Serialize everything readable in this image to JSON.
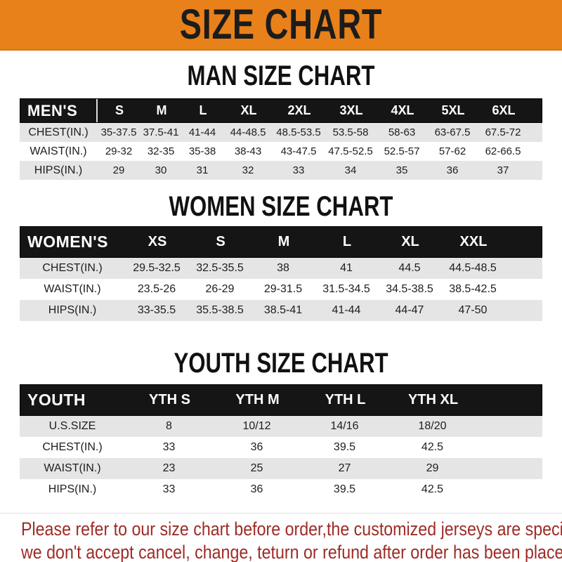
{
  "banner": {
    "title": "SIZE CHART",
    "bg_color": "#E8811A",
    "text_color": "#1c1c1c"
  },
  "tables": [
    {
      "id": "men",
      "title": "MAN SIZE CHART",
      "header_label": "MEN'S",
      "columns": [
        "S",
        "M",
        "L",
        "XL",
        "2XL",
        "3XL",
        "4XL",
        "5XL",
        "6XL"
      ],
      "rows": [
        {
          "label": "CHEST(IN.)",
          "values": [
            "35-37.5",
            "37.5-41",
            "41-44",
            "44-48.5",
            "48.5-53.5",
            "53.5-58",
            "58-63",
            "63-67.5",
            "67.5-72"
          ]
        },
        {
          "label": "WAIST(IN.)",
          "values": [
            "29-32",
            "32-35",
            "35-38",
            "38-43",
            "43-47.5",
            "47.5-52.5",
            "52.5-57",
            "57-62",
            "62-66.5"
          ]
        },
        {
          "label": "HIPS(IN.)",
          "values": [
            "29",
            "30",
            "31",
            "32",
            "33",
            "34",
            "35",
            "36",
            "37"
          ]
        }
      ]
    },
    {
      "id": "women",
      "title": "WOMEN SIZE CHART",
      "header_label": "WOMEN'S",
      "columns": [
        "XS",
        "S",
        "M",
        "L",
        "XL",
        "XXL"
      ],
      "rows": [
        {
          "label": "CHEST(IN.)",
          "values": [
            "29.5-32.5",
            "32.5-35.5",
            "38",
            "41",
            "44.5",
            "44.5-48.5"
          ]
        },
        {
          "label": "WAIST(IN.)",
          "values": [
            "23.5-26",
            "26-29",
            "29-31.5",
            "31.5-34.5",
            "34.5-38.5",
            "38.5-42.5"
          ]
        },
        {
          "label": "HIPS(IN.)",
          "values": [
            "33-35.5",
            "35.5-38.5",
            "38.5-41",
            "41-44",
            "44-47",
            "47-50"
          ]
        }
      ]
    },
    {
      "id": "youth",
      "title": "YOUTH SIZE CHART",
      "header_label": "YOUTH",
      "columns": [
        "YTH S",
        "YTH M",
        "YTH L",
        "YTH XL"
      ],
      "rows": [
        {
          "label": "U.S.SIZE",
          "values": [
            "8",
            "10/12",
            "14/16",
            "18/20"
          ]
        },
        {
          "label": "CHEST(IN.)",
          "values": [
            "33",
            "36",
            "39.5",
            "42.5"
          ]
        },
        {
          "label": "WAIST(IN.)",
          "values": [
            "23",
            "25",
            "27",
            "29"
          ]
        },
        {
          "label": "HIPS(IN.)",
          "values": [
            "33",
            "36",
            "39.5",
            "42.5"
          ]
        }
      ]
    }
  ],
  "footer": {
    "line1": "Please refer to our size chart before order,the customized jerseys are special products,",
    "line2": "we don't accept cancel, change, teturn or refund after order has been placed!",
    "text_color": "#9E2B25"
  },
  "colors": {
    "header_bar": "#151515",
    "row_stripe": "#E5E5E5"
  }
}
